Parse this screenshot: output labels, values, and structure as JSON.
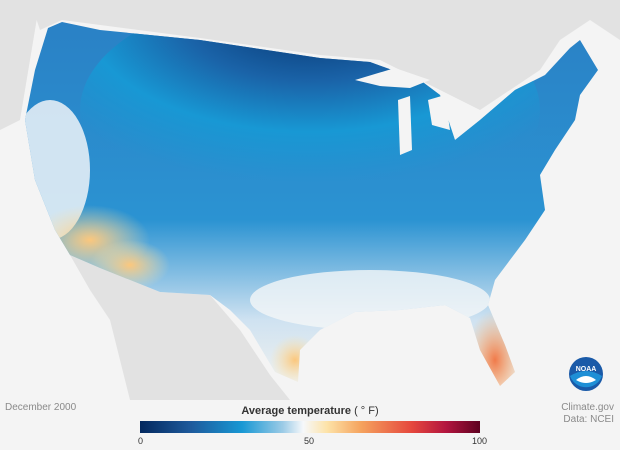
{
  "date_label": "December 2000",
  "legend": {
    "title": "Average temperature",
    "unit": "( ° F)",
    "min": "0",
    "mid": "50",
    "max": "100",
    "colors": [
      "#03285e",
      "#1e5a9c",
      "#1898d4",
      "#9ccbe6",
      "#f6f8fb",
      "#fde3a8",
      "#f5a35e",
      "#e5473d",
      "#b3153f",
      "#5e0120"
    ]
  },
  "credit": {
    "source": "Climate.gov",
    "data": "Data: NCEI"
  },
  "logo": "NOAA"
}
